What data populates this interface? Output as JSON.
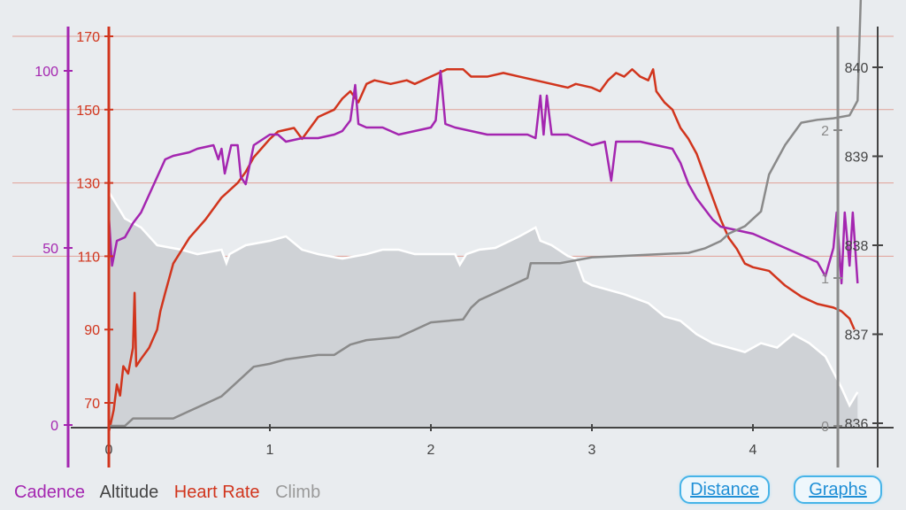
{
  "legend": [
    {
      "label": "Cadence",
      "color": "#a426b0"
    },
    {
      "label": "Altitude",
      "color": "#444444"
    },
    {
      "label": "Heart Rate",
      "color": "#d1351d"
    },
    {
      "label": "Climb",
      "color": "#9a9a9a"
    }
  ],
  "buttons": {
    "distance": "Distance",
    "graphs": "Graphs"
  },
  "chart_data": {
    "type": "line",
    "x_axis": {
      "ticks": [
        0,
        1,
        2,
        3,
        4
      ],
      "range": [
        0,
        4.65
      ]
    },
    "axes": {
      "cadence": {
        "side": "left",
        "color": "#a426b0",
        "ticks": [
          0,
          50,
          100
        ],
        "range": [
          0,
          100
        ]
      },
      "heart_rate": {
        "side": "left",
        "color": "#d1351d",
        "ticks": [
          70,
          90,
          110,
          130,
          150,
          170
        ],
        "range": [
          62,
          170
        ]
      },
      "climb": {
        "side": "right",
        "color": "#8a8a8a",
        "ticks": [
          0,
          1,
          2
        ],
        "range": [
          0,
          2
        ]
      },
      "altitude": {
        "side": "right",
        "color": "#444444",
        "ticks": [
          836,
          837,
          838,
          839,
          840
        ],
        "range": [
          836,
          840
        ]
      }
    },
    "heart_rate_gridlines": [
      110,
      130,
      150,
      170
    ],
    "series": [
      {
        "name": "Altitude",
        "axis": "altitude",
        "color": "#ffffff",
        "fill": "#cfd2d6",
        "points": [
          [
            0,
            838.6
          ],
          [
            0.1,
            838.3
          ],
          [
            0.2,
            838.2
          ],
          [
            0.3,
            838.0
          ],
          [
            0.45,
            837.95
          ],
          [
            0.55,
            837.9
          ],
          [
            0.7,
            837.95
          ],
          [
            0.73,
            837.8
          ],
          [
            0.75,
            837.9
          ],
          [
            0.85,
            838.0
          ],
          [
            1.0,
            838.05
          ],
          [
            1.1,
            838.1
          ],
          [
            1.2,
            837.95
          ],
          [
            1.3,
            837.9
          ],
          [
            1.45,
            837.85
          ],
          [
            1.6,
            837.9
          ],
          [
            1.7,
            837.95
          ],
          [
            1.8,
            837.95
          ],
          [
            1.9,
            837.9
          ],
          [
            2.0,
            837.9
          ],
          [
            2.15,
            837.9
          ],
          [
            2.18,
            837.78
          ],
          [
            2.22,
            837.9
          ],
          [
            2.3,
            837.95
          ],
          [
            2.4,
            837.97
          ],
          [
            2.55,
            838.1
          ],
          [
            2.65,
            838.2
          ],
          [
            2.68,
            838.05
          ],
          [
            2.75,
            838.0
          ],
          [
            2.85,
            837.88
          ],
          [
            2.9,
            837.85
          ],
          [
            2.95,
            837.6
          ],
          [
            3.0,
            837.55
          ],
          [
            3.1,
            837.5
          ],
          [
            3.2,
            837.45
          ],
          [
            3.35,
            837.35
          ],
          [
            3.45,
            837.2
          ],
          [
            3.55,
            837.15
          ],
          [
            3.65,
            837.0
          ],
          [
            3.75,
            836.9
          ],
          [
            3.85,
            836.85
          ],
          [
            3.95,
            836.8
          ],
          [
            4.05,
            836.9
          ],
          [
            4.15,
            836.85
          ],
          [
            4.25,
            837.0
          ],
          [
            4.35,
            836.9
          ],
          [
            4.45,
            836.75
          ],
          [
            4.55,
            836.4
          ],
          [
            4.6,
            836.2
          ],
          [
            4.65,
            836.35
          ]
        ]
      },
      {
        "name": "Heart Rate",
        "axis": "heart_rate",
        "color": "#d1351d",
        "points": [
          [
            0,
            62
          ],
          [
            0.03,
            68
          ],
          [
            0.05,
            75
          ],
          [
            0.07,
            72
          ],
          [
            0.09,
            80
          ],
          [
            0.12,
            78
          ],
          [
            0.15,
            85
          ],
          [
            0.16,
            100
          ],
          [
            0.17,
            80
          ],
          [
            0.2,
            82
          ],
          [
            0.25,
            85
          ],
          [
            0.3,
            90
          ],
          [
            0.32,
            95
          ],
          [
            0.35,
            100
          ],
          [
            0.4,
            108
          ],
          [
            0.5,
            115
          ],
          [
            0.6,
            120
          ],
          [
            0.7,
            126
          ],
          [
            0.8,
            130
          ],
          [
            0.85,
            133
          ],
          [
            0.9,
            137
          ],
          [
            1.0,
            142
          ],
          [
            1.05,
            144
          ],
          [
            1.15,
            145
          ],
          [
            1.2,
            142
          ],
          [
            1.3,
            148
          ],
          [
            1.4,
            150
          ],
          [
            1.45,
            153
          ],
          [
            1.5,
            155
          ],
          [
            1.55,
            152
          ],
          [
            1.6,
            157
          ],
          [
            1.65,
            158
          ],
          [
            1.75,
            157
          ],
          [
            1.85,
            158
          ],
          [
            1.9,
            157
          ],
          [
            2.0,
            159
          ],
          [
            2.1,
            161
          ],
          [
            2.2,
            161
          ],
          [
            2.25,
            159
          ],
          [
            2.35,
            159
          ],
          [
            2.45,
            160
          ],
          [
            2.55,
            159
          ],
          [
            2.65,
            158
          ],
          [
            2.75,
            157
          ],
          [
            2.85,
            156
          ],
          [
            2.9,
            157
          ],
          [
            3.0,
            156
          ],
          [
            3.05,
            155
          ],
          [
            3.1,
            158
          ],
          [
            3.15,
            160
          ],
          [
            3.2,
            159
          ],
          [
            3.25,
            161
          ],
          [
            3.3,
            159
          ],
          [
            3.35,
            158
          ],
          [
            3.38,
            161
          ],
          [
            3.4,
            155
          ],
          [
            3.45,
            152
          ],
          [
            3.5,
            150
          ],
          [
            3.55,
            145
          ],
          [
            3.6,
            142
          ],
          [
            3.65,
            138
          ],
          [
            3.7,
            132
          ],
          [
            3.75,
            126
          ],
          [
            3.8,
            120
          ],
          [
            3.85,
            115
          ],
          [
            3.9,
            112
          ],
          [
            3.95,
            108
          ],
          [
            4.0,
            107
          ],
          [
            4.1,
            106
          ],
          [
            4.2,
            102
          ],
          [
            4.3,
            99
          ],
          [
            4.4,
            97
          ],
          [
            4.5,
            96
          ],
          [
            4.55,
            95
          ],
          [
            4.6,
            93
          ],
          [
            4.63,
            90
          ]
        ]
      },
      {
        "name": "Cadence",
        "axis": "cadence",
        "color": "#a426b0",
        "points": [
          [
            0,
            59
          ],
          [
            0.02,
            45
          ],
          [
            0.05,
            52
          ],
          [
            0.1,
            53
          ],
          [
            0.15,
            57
          ],
          [
            0.2,
            60
          ],
          [
            0.25,
            65
          ],
          [
            0.3,
            70
          ],
          [
            0.35,
            75
          ],
          [
            0.4,
            76
          ],
          [
            0.5,
            77
          ],
          [
            0.55,
            78
          ],
          [
            0.65,
            79
          ],
          [
            0.68,
            75
          ],
          [
            0.7,
            78
          ],
          [
            0.72,
            71
          ],
          [
            0.76,
            79
          ],
          [
            0.8,
            79
          ],
          [
            0.82,
            70
          ],
          [
            0.85,
            68
          ],
          [
            0.9,
            79
          ],
          [
            1.0,
            82
          ],
          [
            1.05,
            82
          ],
          [
            1.1,
            80
          ],
          [
            1.2,
            81
          ],
          [
            1.3,
            81
          ],
          [
            1.4,
            82
          ],
          [
            1.45,
            83
          ],
          [
            1.5,
            86
          ],
          [
            1.53,
            96
          ],
          [
            1.55,
            85
          ],
          [
            1.6,
            84
          ],
          [
            1.7,
            84
          ],
          [
            1.8,
            82
          ],
          [
            1.9,
            83
          ],
          [
            2.0,
            84
          ],
          [
            2.03,
            86
          ],
          [
            2.06,
            100
          ],
          [
            2.09,
            85
          ],
          [
            2.15,
            84
          ],
          [
            2.25,
            83
          ],
          [
            2.35,
            82
          ],
          [
            2.5,
            82
          ],
          [
            2.6,
            82
          ],
          [
            2.65,
            81
          ],
          [
            2.68,
            93
          ],
          [
            2.7,
            82
          ],
          [
            2.72,
            93
          ],
          [
            2.75,
            82
          ],
          [
            2.85,
            82
          ],
          [
            2.95,
            80
          ],
          [
            3.0,
            79
          ],
          [
            3.08,
            80
          ],
          [
            3.12,
            69
          ],
          [
            3.15,
            80
          ],
          [
            3.2,
            80
          ],
          [
            3.3,
            80
          ],
          [
            3.4,
            79
          ],
          [
            3.5,
            78
          ],
          [
            3.55,
            74
          ],
          [
            3.6,
            68
          ],
          [
            3.65,
            64
          ],
          [
            3.7,
            61
          ],
          [
            3.75,
            58
          ],
          [
            3.8,
            56
          ],
          [
            3.9,
            55
          ],
          [
            4.0,
            54
          ],
          [
            4.1,
            52
          ],
          [
            4.2,
            50
          ],
          [
            4.3,
            48
          ],
          [
            4.4,
            46
          ],
          [
            4.45,
            42
          ],
          [
            4.5,
            50
          ],
          [
            4.52,
            60
          ],
          [
            4.55,
            40
          ],
          [
            4.57,
            60
          ],
          [
            4.6,
            45
          ],
          [
            4.62,
            60
          ],
          [
            4.65,
            40
          ]
        ]
      },
      {
        "name": "Climb",
        "axis": "climb",
        "color": "#8a8a8a",
        "points": [
          [
            0,
            0
          ],
          [
            0.1,
            0
          ],
          [
            0.15,
            0.05
          ],
          [
            0.3,
            0.05
          ],
          [
            0.4,
            0.05
          ],
          [
            0.5,
            0.1
          ],
          [
            0.6,
            0.15
          ],
          [
            0.7,
            0.2
          ],
          [
            0.8,
            0.3
          ],
          [
            0.9,
            0.4
          ],
          [
            1.0,
            0.42
          ],
          [
            1.1,
            0.45
          ],
          [
            1.3,
            0.48
          ],
          [
            1.4,
            0.48
          ],
          [
            1.5,
            0.55
          ],
          [
            1.6,
            0.58
          ],
          [
            1.8,
            0.6
          ],
          [
            1.9,
            0.65
          ],
          [
            2.0,
            0.7
          ],
          [
            2.2,
            0.72
          ],
          [
            2.25,
            0.8
          ],
          [
            2.3,
            0.85
          ],
          [
            2.4,
            0.9
          ],
          [
            2.5,
            0.95
          ],
          [
            2.6,
            1.0
          ],
          [
            2.62,
            1.1
          ],
          [
            2.7,
            1.1
          ],
          [
            2.8,
            1.1
          ],
          [
            2.9,
            1.12
          ],
          [
            3.0,
            1.14
          ],
          [
            3.2,
            1.15
          ],
          [
            3.4,
            1.16
          ],
          [
            3.6,
            1.17
          ],
          [
            3.7,
            1.2
          ],
          [
            3.8,
            1.25
          ],
          [
            3.85,
            1.3
          ],
          [
            3.95,
            1.35
          ],
          [
            4.05,
            1.45
          ],
          [
            4.1,
            1.7
          ],
          [
            4.15,
            1.8
          ],
          [
            4.2,
            1.9
          ],
          [
            4.3,
            2.05
          ],
          [
            4.4,
            2.07
          ],
          [
            4.5,
            2.08
          ],
          [
            4.6,
            2.1
          ],
          [
            4.65,
            2.2
          ],
          [
            4.67,
            2.9
          ]
        ]
      }
    ]
  }
}
